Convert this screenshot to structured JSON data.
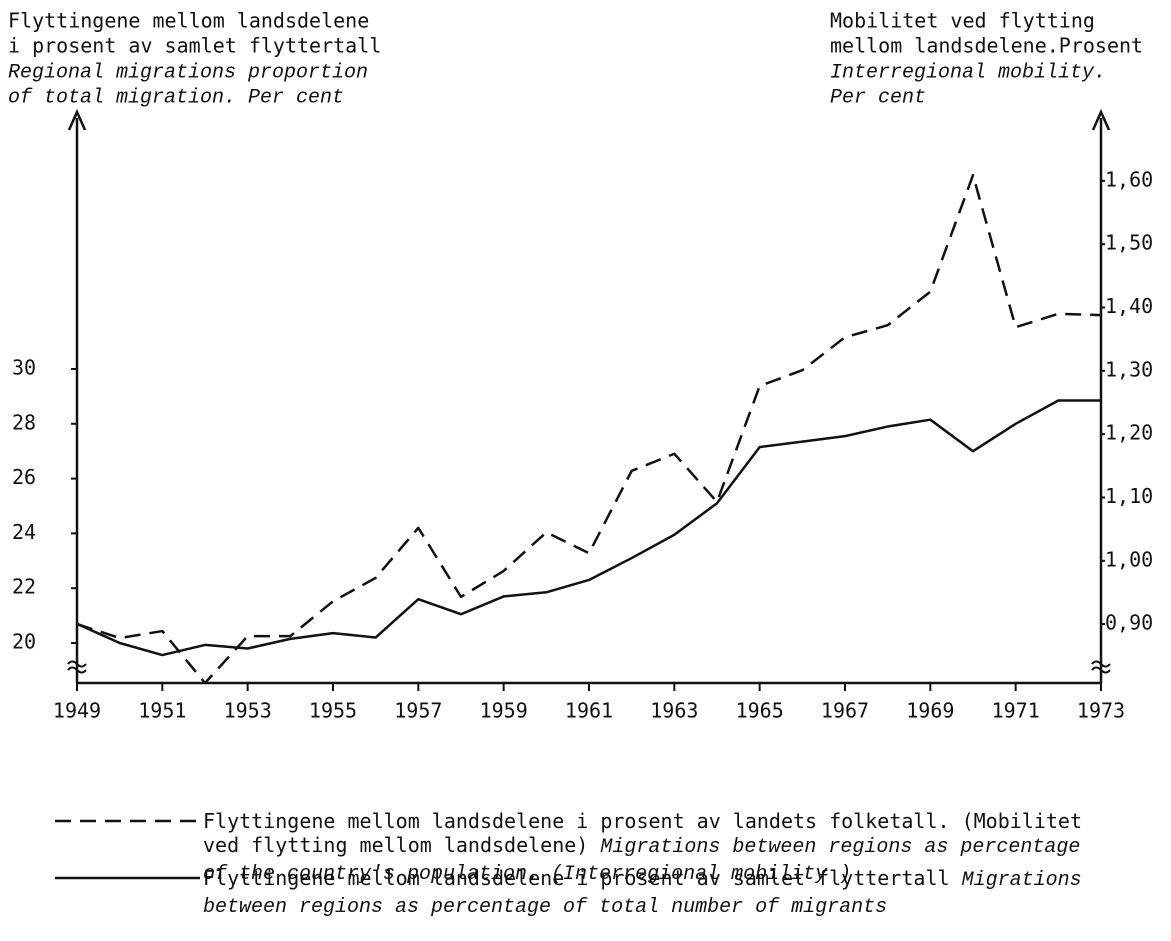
{
  "chart_data": {
    "type": "line",
    "ylabel": [
      "Flyttingene mellom landsdelene",
      "i prosent av samlet flyttertall"
    ],
    "ylabel_en": [
      "Regional migrations proportion",
      "of total migration. Per cent"
    ],
    "y2label": [
      "Mobilitet ved flytting",
      "mellom landsdelene.Prosent"
    ],
    "y2label_en": [
      "Interregional mobility.",
      "Per cent"
    ],
    "x": [
      1949,
      1950,
      1951,
      1952,
      1953,
      1954,
      1955,
      1956,
      1957,
      1958,
      1959,
      1960,
      1961,
      1962,
      1963,
      1964,
      1965,
      1966,
      1967,
      1968,
      1969,
      1970,
      1971,
      1972,
      1973
    ],
    "xlim": [
      1949,
      1973
    ],
    "xticks": [
      1949,
      1951,
      1953,
      1955,
      1957,
      1959,
      1961,
      1963,
      1965,
      1967,
      1969,
      1971,
      1973
    ],
    "ylim": [
      18.54,
      39.27
    ],
    "yticks": [
      20,
      22,
      24,
      26,
      28,
      30
    ],
    "y2lim": [
      0.807,
      1.704
    ],
    "y2ticks": [
      {
        "value": 0.9,
        "label": "0,90"
      },
      {
        "value": 1.0,
        "label": "1,00"
      },
      {
        "value": 1.1,
        "label": "1,10"
      },
      {
        "value": 1.2,
        "label": "1,20"
      },
      {
        "value": 1.3,
        "label": "1,30"
      },
      {
        "value": 1.4,
        "label": "1,40"
      },
      {
        "value": 1.5,
        "label": "1,50"
      },
      {
        "value": 1.6,
        "label": "1,60"
      }
    ],
    "grid": false,
    "series": [
      {
        "name": "Flyttingene mellom landsdelene i prosent av landets folketall. (Mobilitet ved flytting mellom landsdelene)",
        "name_en": "Migrations between regions as percentage of the country's population. (Interregional mobility )",
        "color": "#111111",
        "dash": true,
        "axis": "y2",
        "values": [
          0.9,
          0.878,
          0.889,
          0.807,
          0.881,
          0.881,
          0.936,
          0.973,
          1.052,
          0.943,
          0.984,
          1.045,
          1.012,
          1.142,
          1.169,
          1.093,
          1.276,
          1.301,
          1.353,
          1.372,
          1.425,
          1.609,
          1.369,
          1.39,
          1.388
        ]
      },
      {
        "name": "Flyttingene mellom landsdelene i prosent av samlet flyttertall",
        "name_en": "Migrations between regions as percentage of total number of migrants",
        "color": "#111111",
        "dash": false,
        "axis": "y",
        "values": [
          20.7,
          20.0,
          19.56,
          19.93,
          19.8,
          20.15,
          20.36,
          20.2,
          21.6,
          21.05,
          21.7,
          21.85,
          22.3,
          23.1,
          23.95,
          25.1,
          27.15,
          27.35,
          27.55,
          27.9,
          28.15,
          27.0,
          28.0,
          28.85,
          28.85
        ]
      }
    ]
  }
}
